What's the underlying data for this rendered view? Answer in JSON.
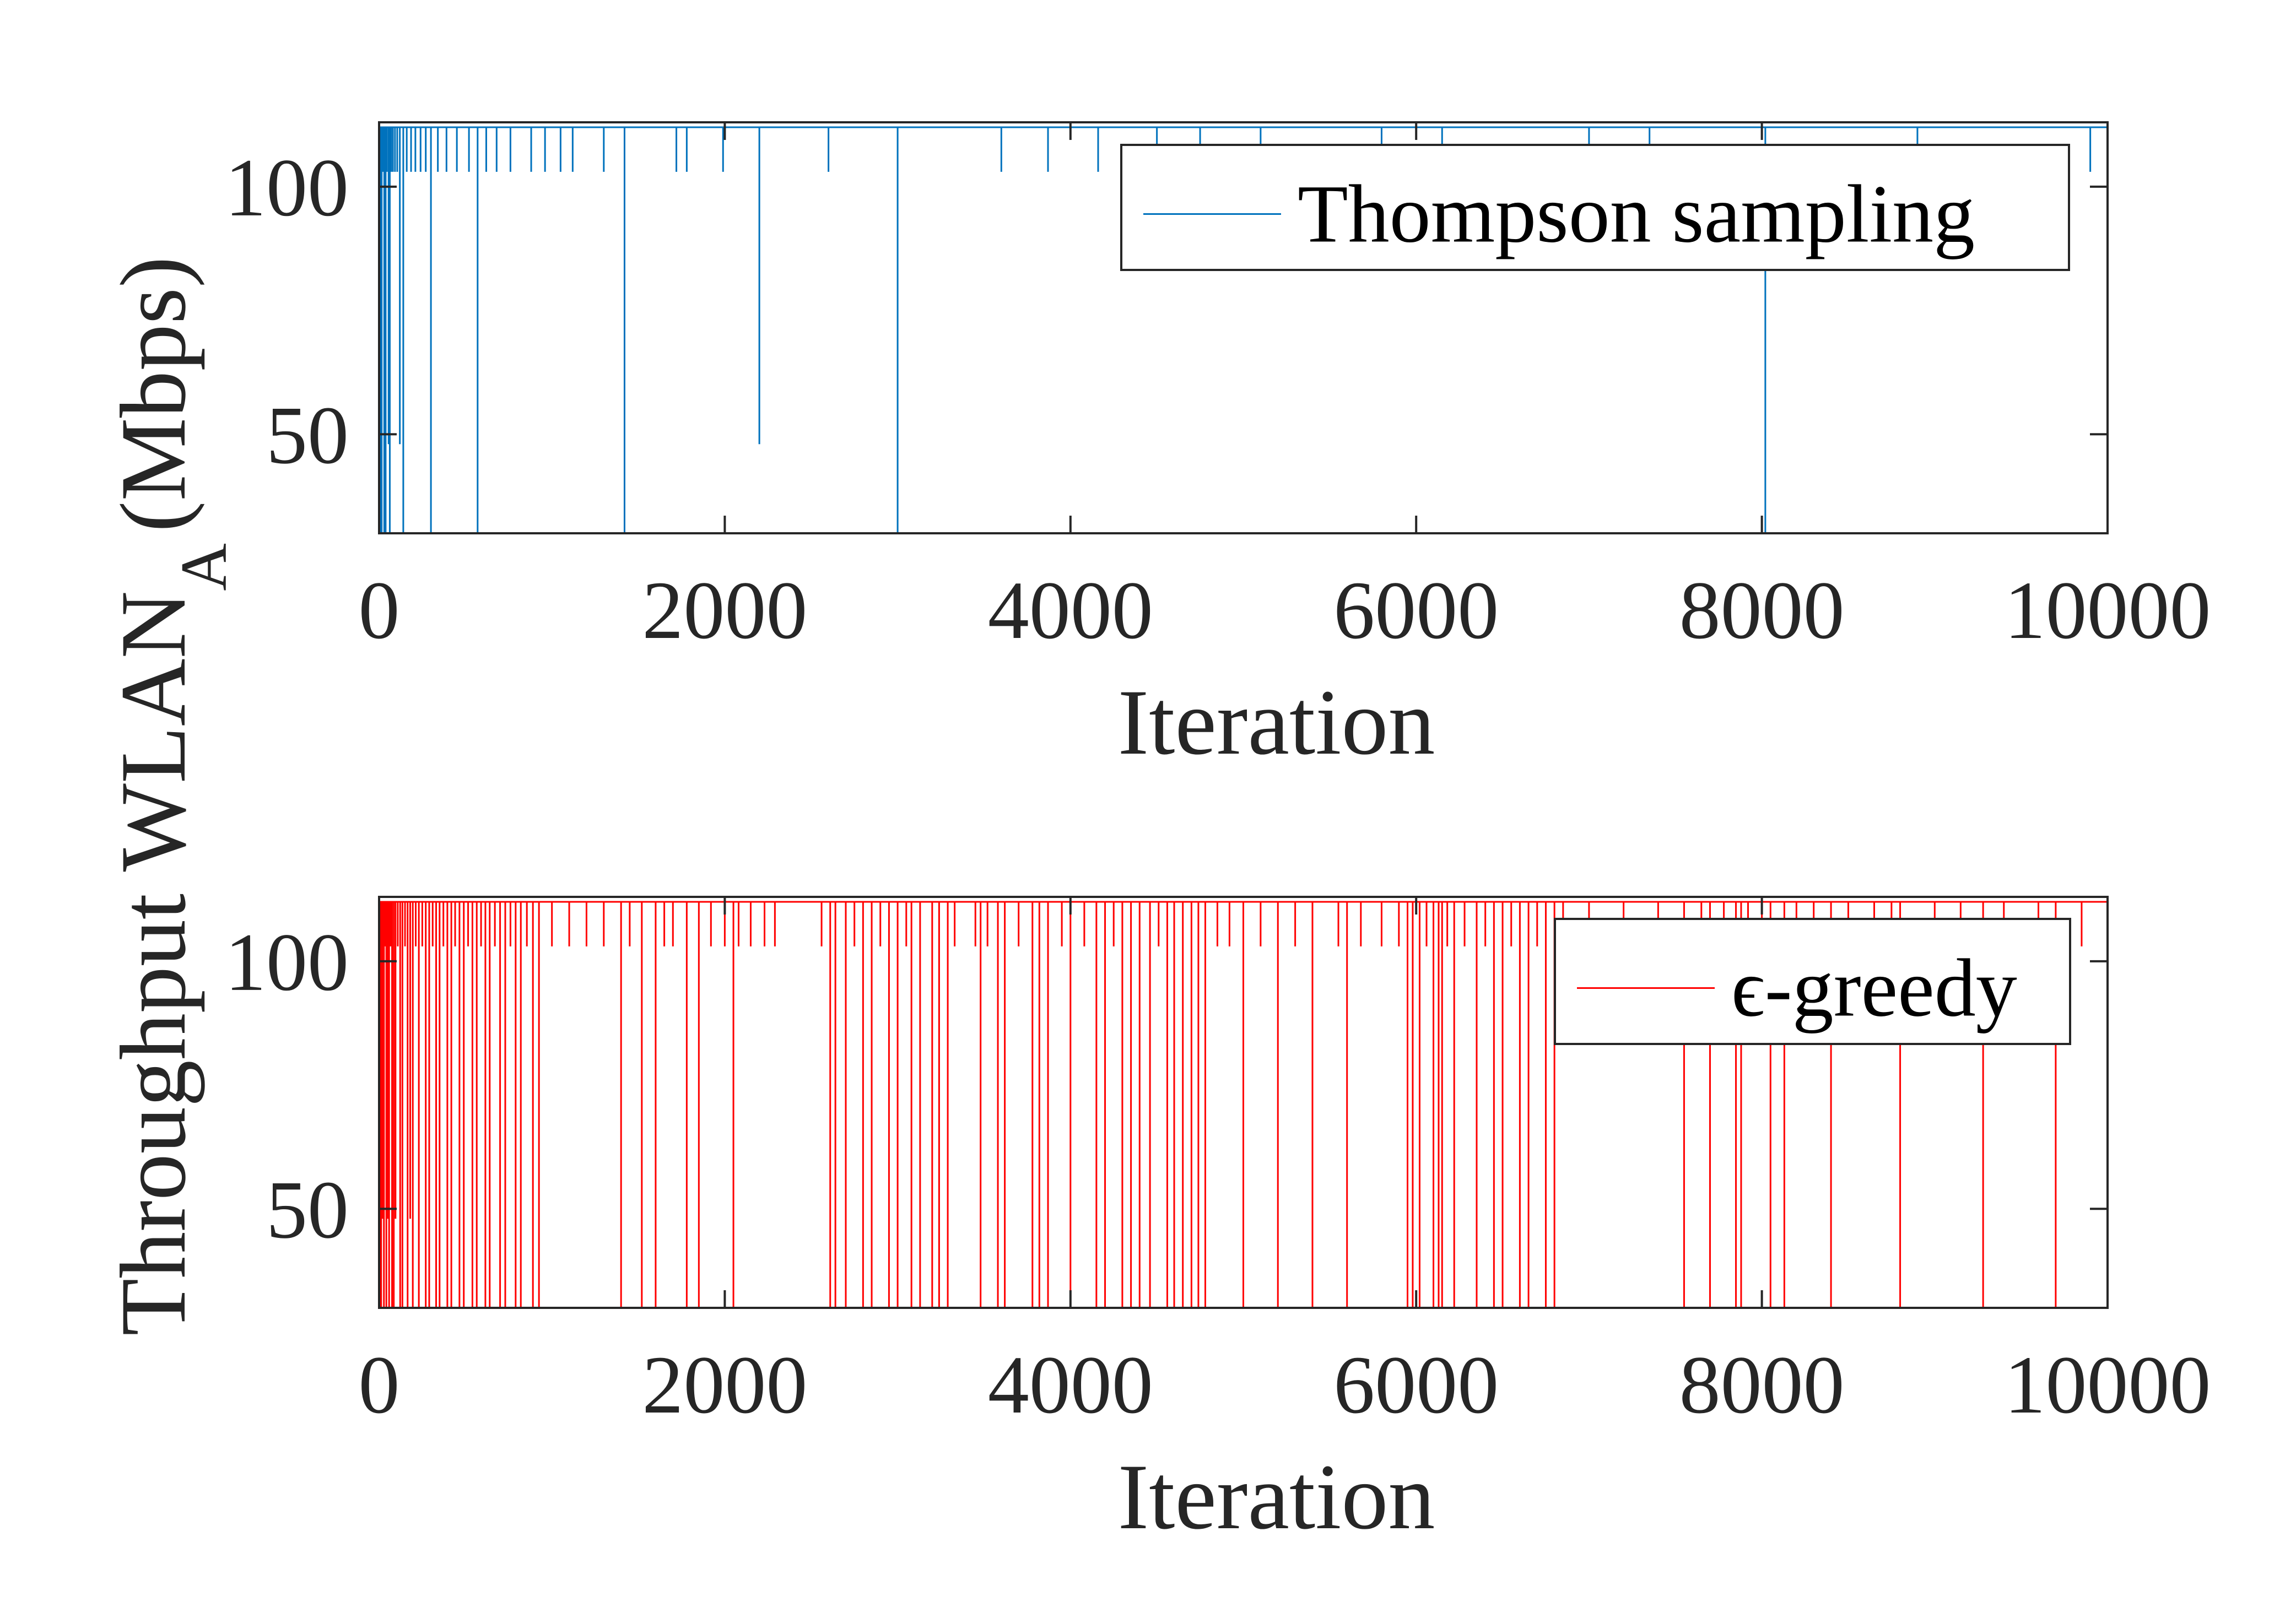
{
  "chart_data": {
    "type": "line",
    "ylabel": "Throughput WLAN",
    "ylabel_subscript": "A",
    "ylabel_unit": "(Mbps)",
    "panels": [
      {
        "xlabel": "Iteration",
        "xlim": [
          0,
          10000
        ],
        "ylim": [
          30,
          113
        ],
        "xticks": [
          0,
          2000,
          4000,
          6000,
          8000,
          10000
        ],
        "yticks": [
          50,
          100
        ],
        "grid": false,
        "legend_position": "top-right",
        "series": [
          {
            "name": "Thompson sampling",
            "color": "#0072BD",
            "baseline": 112,
            "drops": [
              [
                8,
                30
              ],
              [
                15,
                30
              ],
              [
                22,
                103
              ],
              [
                30,
                30
              ],
              [
                38,
                30
              ],
              [
                45,
                103
              ],
              [
                55,
                48
              ],
              [
                62,
                30
              ],
              [
                70,
                103
              ],
              [
                80,
                103
              ],
              [
                92,
                103
              ],
              [
                105,
                103
              ],
              [
                120,
                48
              ],
              [
                140,
                30
              ],
              [
                160,
                103
              ],
              [
                185,
                103
              ],
              [
                210,
                103
              ],
              [
                240,
                103
              ],
              [
                270,
                103
              ],
              [
                300,
                30
              ],
              [
                340,
                103
              ],
              [
                390,
                103
              ],
              [
                450,
                103
              ],
              [
                520,
                103
              ],
              [
                570,
                30
              ],
              [
                620,
                103
              ],
              [
                680,
                103
              ],
              [
                760,
                103
              ],
              [
                880,
                103
              ],
              [
                960,
                103
              ],
              [
                1050,
                103
              ],
              [
                1120,
                103
              ],
              [
                1300,
                103
              ],
              [
                1420,
                30
              ],
              [
                1720,
                103
              ],
              [
                1780,
                103
              ],
              [
                1990,
                103
              ],
              [
                2200,
                48
              ],
              [
                2600,
                103
              ],
              [
                3000,
                30
              ],
              [
                3600,
                103
              ],
              [
                3870,
                103
              ],
              [
                4160,
                103
              ],
              [
                4500,
                103
              ],
              [
                4750,
                103
              ],
              [
                5100,
                103
              ],
              [
                5800,
                103
              ],
              [
                6150,
                103
              ],
              [
                7000,
                103
              ],
              [
                7350,
                103
              ],
              [
                8020,
                30
              ],
              [
                8900,
                103
              ],
              [
                9900,
                103
              ]
            ]
          },
          {
            "name": "ϵ-greedy",
            "color": "#FF0000",
            "baseline": 112,
            "drops": [
              [
                5,
                30
              ],
              [
                12,
                30
              ],
              [
                20,
                48
              ],
              [
                28,
                30
              ],
              [
                35,
                103
              ],
              [
                42,
                30
              ],
              [
                50,
                48
              ],
              [
                58,
                30
              ],
              [
                66,
                103
              ],
              [
                75,
                30
              ],
              [
                85,
                30
              ],
              [
                95,
                48
              ],
              [
                108,
                103
              ],
              [
                122,
                30
              ],
              [
                135,
                30
              ],
              [
                150,
                103
              ],
              [
                165,
                30
              ],
              [
                180,
                48
              ],
              [
                195,
                30
              ],
              [
                212,
                103
              ],
              [
                230,
                30
              ],
              [
                250,
                103
              ],
              [
                270,
                30
              ],
              [
                290,
                30
              ],
              [
                310,
                103
              ],
              [
                330,
                30
              ],
              [
                350,
                30
              ],
              [
                372,
                103
              ],
              [
                395,
                30
              ],
              [
                418,
                30
              ],
              [
                440,
                103
              ],
              [
                465,
                30
              ],
              [
                490,
                30
              ],
              [
                515,
                103
              ],
              [
                540,
                30
              ],
              [
                565,
                30
              ],
              [
                590,
                103
              ],
              [
                615,
                30
              ],
              [
                640,
                30
              ],
              [
                670,
                103
              ],
              [
                700,
                30
              ],
              [
                730,
                30
              ],
              [
                760,
                103
              ],
              [
                790,
                30
              ],
              [
                820,
                30
              ],
              [
                855,
                103
              ],
              [
                890,
                30
              ],
              [
                925,
                30
              ],
              [
                1000,
                103
              ],
              [
                1100,
                103
              ],
              [
                1200,
                103
              ],
              [
                1300,
                103
              ],
              [
                1400,
                30
              ],
              [
                1450,
                103
              ],
              [
                1520,
                30
              ],
              [
                1600,
                30
              ],
              [
                1650,
                103
              ],
              [
                1700,
                103
              ],
              [
                1780,
                30
              ],
              [
                1850,
                30
              ],
              [
                1920,
                103
              ],
              [
                2000,
                103
              ],
              [
                2050,
                30
              ],
              [
                2080,
                103
              ],
              [
                2150,
                103
              ],
              [
                2230,
                103
              ],
              [
                2290,
                103
              ],
              [
                2560,
                103
              ],
              [
                2610,
                30
              ],
              [
                2640,
                30
              ],
              [
                2700,
                30
              ],
              [
                2750,
                103
              ],
              [
                2800,
                30
              ],
              [
                2850,
                30
              ],
              [
                2900,
                103
              ],
              [
                2950,
                30
              ],
              [
                3000,
                30
              ],
              [
                3050,
                103
              ],
              [
                3080,
                30
              ],
              [
                3130,
                30
              ],
              [
                3200,
                30
              ],
              [
                3240,
                30
              ],
              [
                3290,
                30
              ],
              [
                3330,
                103
              ],
              [
                3450,
                103
              ],
              [
                3480,
                30
              ],
              [
                3520,
                103
              ],
              [
                3580,
                30
              ],
              [
                3620,
                30
              ],
              [
                3700,
                103
              ],
              [
                3780,
                30
              ],
              [
                3820,
                30
              ],
              [
                3870,
                30
              ],
              [
                3950,
                103
              ],
              [
                4000,
                30
              ],
              [
                4080,
                103
              ],
              [
                4150,
                30
              ],
              [
                4200,
                30
              ],
              [
                4250,
                103
              ],
              [
                4300,
                30
              ],
              [
                4350,
                30
              ],
              [
                4400,
                30
              ],
              [
                4460,
                30
              ],
              [
                4510,
                103
              ],
              [
                4560,
                30
              ],
              [
                4600,
                30
              ],
              [
                4650,
                30
              ],
              [
                4700,
                30
              ],
              [
                4740,
                30
              ],
              [
                4780,
                30
              ],
              [
                4850,
                103
              ],
              [
                4920,
                103
              ],
              [
                5000,
                30
              ],
              [
                5100,
                103
              ],
              [
                5200,
                30
              ],
              [
                5300,
                103
              ],
              [
                5400,
                30
              ],
              [
                5550,
                103
              ],
              [
                5600,
                30
              ],
              [
                5680,
                103
              ],
              [
                5800,
                103
              ],
              [
                5900,
                103
              ],
              [
                5950,
                30
              ],
              [
                5980,
                30
              ],
              [
                6020,
                30
              ],
              [
                6060,
                103
              ],
              [
                6100,
                30
              ],
              [
                6130,
                30
              ],
              [
                6150,
                30
              ],
              [
                6180,
                103
              ],
              [
                6220,
                30
              ],
              [
                6280,
                103
              ],
              [
                6350,
                30
              ],
              [
                6400,
                103
              ],
              [
                6450,
                30
              ],
              [
                6500,
                30
              ],
              [
                6550,
                103
              ],
              [
                6600,
                30
              ],
              [
                6650,
                30
              ],
              [
                6700,
                103
              ],
              [
                6750,
                30
              ],
              [
                6800,
                30
              ],
              [
                6850,
                103
              ],
              [
                7000,
                103
              ],
              [
                7200,
                103
              ],
              [
                7400,
                103
              ],
              [
                7550,
                30
              ],
              [
                7650,
                103
              ],
              [
                7700,
                30
              ],
              [
                7780,
                103
              ],
              [
                7850,
                30
              ],
              [
                7880,
                30
              ],
              [
                7920,
                103
              ],
              [
                8000,
                103
              ],
              [
                8050,
                30
              ],
              [
                8130,
                30
              ],
              [
                8200,
                103
              ],
              [
                8300,
                103
              ],
              [
                8400,
                30
              ],
              [
                8500,
                103
              ],
              [
                8650,
                103
              ],
              [
                8750,
                103
              ],
              [
                8800,
                30
              ],
              [
                9000,
                103
              ],
              [
                9150,
                103
              ],
              [
                9280,
                30
              ],
              [
                9400,
                103
              ],
              [
                9600,
                103
              ],
              [
                9700,
                30
              ],
              [
                9850,
                103
              ]
            ]
          }
        ]
      }
    ]
  }
}
